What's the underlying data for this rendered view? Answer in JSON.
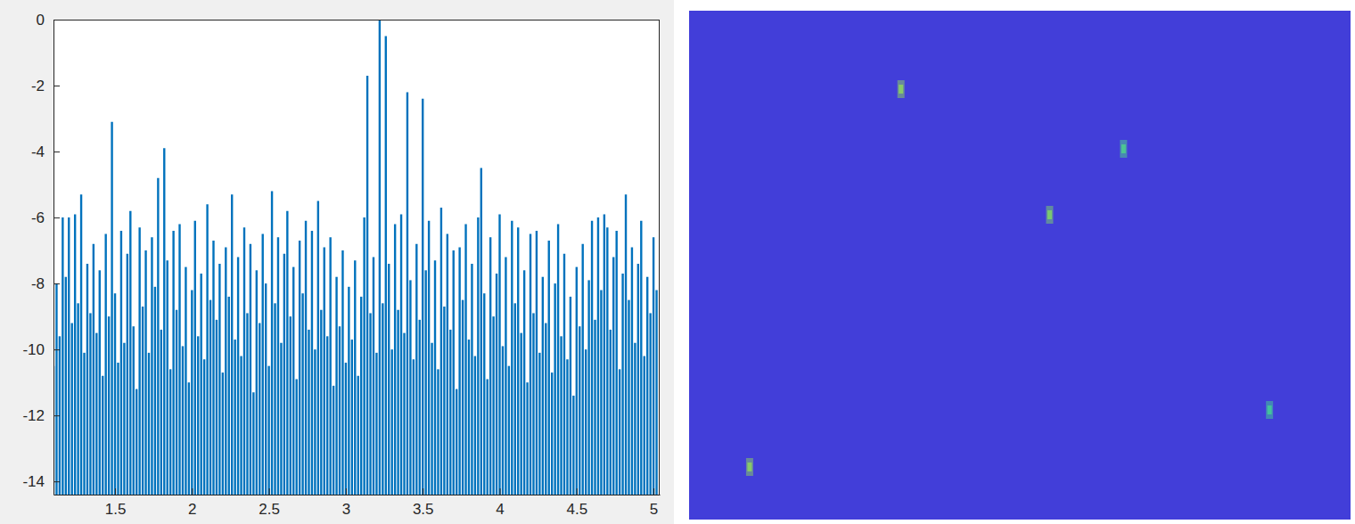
{
  "chart_data": [
    {
      "type": "stem",
      "color": "#0072bd",
      "grid": false,
      "xlim": [
        1.1,
        5.04
      ],
      "ylim": [
        -14.4,
        0
      ],
      "xticks": [
        1.5,
        2,
        2.5,
        3,
        3.5,
        4,
        4.5,
        5
      ],
      "yticks": [
        -14,
        -12,
        -10,
        -8,
        -6,
        -4,
        -2,
        0
      ],
      "x": [
        1.1,
        1.12,
        1.14,
        1.16,
        1.18,
        1.2,
        1.22,
        1.24,
        1.26,
        1.28,
        1.3,
        1.32,
        1.34,
        1.36,
        1.38,
        1.4,
        1.42,
        1.44,
        1.46,
        1.48,
        1.5,
        1.52,
        1.54,
        1.56,
        1.58,
        1.6,
        1.62,
        1.64,
        1.66,
        1.68,
        1.7,
        1.72,
        1.74,
        1.76,
        1.78,
        1.8,
        1.82,
        1.84,
        1.86,
        1.88,
        1.9,
        1.92,
        1.94,
        1.96,
        1.98,
        2.0,
        2.02,
        2.04,
        2.06,
        2.08,
        2.1,
        2.12,
        2.14,
        2.16,
        2.18,
        2.2,
        2.22,
        2.24,
        2.26,
        2.28,
        2.3,
        2.32,
        2.34,
        2.36,
        2.38,
        2.4,
        2.42,
        2.44,
        2.46,
        2.48,
        2.5,
        2.52,
        2.54,
        2.56,
        2.58,
        2.6,
        2.62,
        2.64,
        2.66,
        2.68,
        2.7,
        2.72,
        2.74,
        2.76,
        2.78,
        2.8,
        2.82,
        2.84,
        2.86,
        2.88,
        2.9,
        2.92,
        2.94,
        2.96,
        2.98,
        3.0,
        3.02,
        3.04,
        3.06,
        3.08,
        3.1,
        3.12,
        3.14,
        3.16,
        3.18,
        3.2,
        3.22,
        3.24,
        3.26,
        3.28,
        3.3,
        3.32,
        3.34,
        3.36,
        3.38,
        3.4,
        3.42,
        3.44,
        3.46,
        3.48,
        3.5,
        3.52,
        3.54,
        3.56,
        3.58,
        3.6,
        3.62,
        3.64,
        3.66,
        3.68,
        3.7,
        3.72,
        3.74,
        3.76,
        3.78,
        3.8,
        3.82,
        3.84,
        3.86,
        3.88,
        3.9,
        3.92,
        3.94,
        3.96,
        3.98,
        4.0,
        4.02,
        4.04,
        4.06,
        4.08,
        4.1,
        4.12,
        4.14,
        4.16,
        4.18,
        4.2,
        4.22,
        4.24,
        4.26,
        4.28,
        4.3,
        4.32,
        4.34,
        4.36,
        4.38,
        4.4,
        4.42,
        4.44,
        4.46,
        4.48,
        4.5,
        4.52,
        4.54,
        4.56,
        4.58,
        4.6,
        4.62,
        4.64,
        4.66,
        4.68,
        4.7,
        4.72,
        4.74,
        4.76,
        4.78,
        4.8,
        4.82,
        4.84,
        4.86,
        4.88,
        4.9,
        4.92,
        4.94,
        4.96,
        4.98,
        5.0,
        5.02
      ],
      "values": [
        -10.5,
        -8.0,
        -9.6,
        -6.0,
        -7.8,
        -6.0,
        -9.2,
        -5.9,
        -8.6,
        -5.3,
        -10.1,
        -7.4,
        -8.9,
        -6.8,
        -9.5,
        -7.6,
        -10.8,
        -6.5,
        -9.0,
        -3.1,
        -8.3,
        -10.4,
        -6.4,
        -9.8,
        -7.1,
        -5.8,
        -9.3,
        -11.2,
        -6.3,
        -8.7,
        -7.0,
        -10.1,
        -6.6,
        -8.1,
        -4.8,
        -9.4,
        -3.9,
        -7.3,
        -10.6,
        -6.4,
        -8.8,
        -6.2,
        -9.9,
        -7.5,
        -11.0,
        -8.2,
        -6.1,
        -9.6,
        -7.7,
        -10.3,
        -5.6,
        -8.5,
        -6.7,
        -9.1,
        -7.4,
        -10.7,
        -6.9,
        -8.4,
        -5.3,
        -9.7,
        -7.2,
        -10.2,
        -6.3,
        -8.9,
        -6.8,
        -11.3,
        -7.6,
        -9.2,
        -6.5,
        -8.0,
        -10.5,
        -5.2,
        -8.6,
        -6.6,
        -9.8,
        -7.1,
        -5.8,
        -9.0,
        -7.5,
        -10.9,
        -6.7,
        -8.3,
        -6.1,
        -9.4,
        -6.4,
        -10.0,
        -5.5,
        -8.8,
        -6.9,
        -9.6,
        -6.6,
        -11.1,
        -7.8,
        -9.3,
        -7.0,
        -10.4,
        -8.1,
        -9.7,
        -7.3,
        -10.8,
        -8.4,
        -6.0,
        -1.7,
        -8.9,
        -7.2,
        -10.1,
        0,
        -8.6,
        -0.5,
        -7.4,
        -10.0,
        -6.2,
        -8.8,
        -5.9,
        -9.5,
        -2.2,
        -7.9,
        -10.3,
        -6.8,
        -9.1,
        -2.4,
        -7.6,
        -6.1,
        -9.8,
        -7.3,
        -10.6,
        -5.7,
        -8.7,
        -6.5,
        -9.4,
        -7.0,
        -11.2,
        -6.9,
        -8.5,
        -6.2,
        -9.7,
        -7.4,
        -10.2,
        -6.0,
        -4.5,
        -8.3,
        -10.9,
        -6.6,
        -9.0,
        -7.7,
        -5.9,
        -9.9,
        -7.2,
        -10.5,
        -6.1,
        -8.6,
        -6.3,
        -9.5,
        -7.6,
        -11.0,
        -6.5,
        -8.9,
        -6.4,
        -10.1,
        -7.8,
        -9.2,
        -6.7,
        -10.7,
        -8.0,
        -6.2,
        -9.6,
        -7.1,
        -10.3,
        -8.4,
        -11.4,
        -7.5,
        -9.3,
        -6.8,
        -10.0,
        -7.9,
        -6.1,
        -9.1,
        -6.0,
        -8.2,
        -5.9,
        -6.3,
        -9.4,
        -7.2,
        -6.4,
        -10.6,
        -7.7,
        -5.3,
        -8.5,
        -6.9,
        -9.8,
        -7.4,
        -6.1,
        -10.2,
        -7.8,
        -8.9,
        -6.6,
        -8.2
      ]
    },
    {
      "type": "heatmap",
      "tick_labels": false,
      "xlim": [
        0,
        743
      ],
      "ylim": [
        0,
        571
      ],
      "color_range": [
        0,
        1
      ],
      "background": 0.12,
      "spots": {
        "x": [
          238,
          488,
          405,
          68,
          652
        ],
        "y": [
          88,
          155,
          229,
          512,
          448
        ],
        "values": [
          0.72,
          0.62,
          0.7,
          0.72,
          0.6
        ]
      }
    }
  ]
}
